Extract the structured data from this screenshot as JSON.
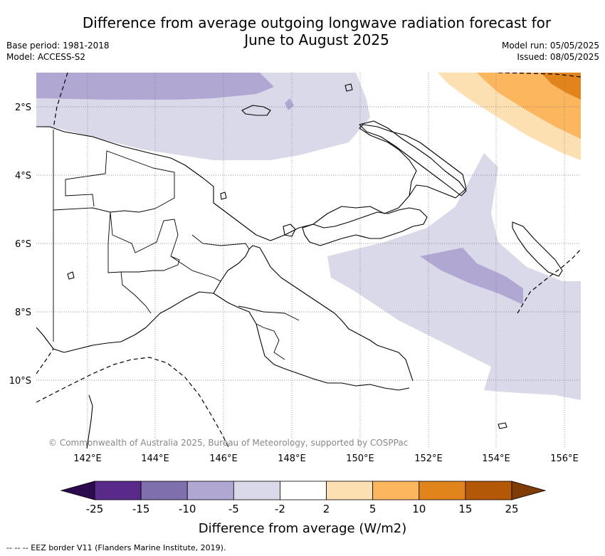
{
  "title_line1": "Difference from average outgoing longwave radiation forecast for",
  "title_line2": "June to August 2025",
  "base_period": "Base period: 1981-2018",
  "model": "Model: ACCESS-S2",
  "model_run": "Model run: 05/05/2025",
  "issued": "Issued: 08/05/2025",
  "copyright": "© Commonwealth of Australia 2025, Bureau of Meteorology, supported by COSPPac",
  "lat_labels": [
    "2°S",
    "4°S",
    "6°S",
    "8°S",
    "10°S"
  ],
  "lon_labels": [
    "142°E",
    "144°E",
    "146°E",
    "148°E",
    "150°E",
    "152°E",
    "154°E",
    "156°E"
  ],
  "colorbar": {
    "label": "Difference from average (W/m2)",
    "ticks": [
      "-25",
      "-15",
      "-10",
      "-5",
      "-2",
      "2",
      "5",
      "10",
      "15",
      "25"
    ],
    "colors": [
      "#2d0a4e",
      "#5a2a8a",
      "#7f6fad",
      "#b0a8d3",
      "#d9d9ea",
      "#ffffff",
      "#fde0b2",
      "#fbb65e",
      "#e2841c",
      "#b35806",
      "#7f3b08"
    ]
  },
  "footer": "-- -- -- EEZ border V11 (Flanders Marine Institute, 2019)."
}
